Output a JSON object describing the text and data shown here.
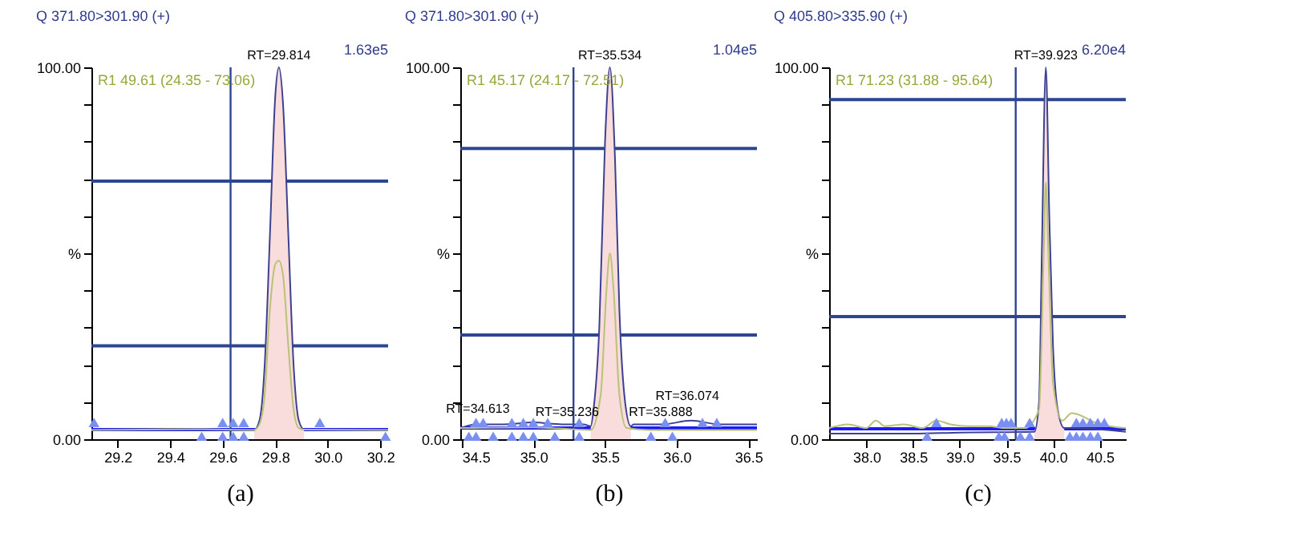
{
  "chart_data": [
    {
      "type": "line",
      "title": "Q 371.80>301.90 (+)",
      "xlabel": "(a)",
      "xlim": [
        29.1,
        30.23
      ],
      "xticks": [
        {
          "value": 29.2,
          "label": "29.2"
        },
        {
          "value": 29.4,
          "label": "29.4"
        },
        {
          "value": 29.6,
          "label": "29.6"
        },
        {
          "value": 29.8,
          "label": "29.8"
        },
        {
          "value": 30.0,
          "label": "30.0"
        },
        {
          "value": 30.2,
          "label": "30.2"
        }
      ],
      "ylim": [
        0,
        100
      ],
      "yticks": [
        {
          "value": 0,
          "label": "0.00"
        },
        {
          "value": 10,
          "label": null
        },
        {
          "value": 20,
          "label": null
        },
        {
          "value": 30,
          "label": null
        },
        {
          "value": 40,
          "label": null
        },
        {
          "value": 50,
          "label": "%"
        },
        {
          "value": 60,
          "label": null
        },
        {
          "value": 70,
          "label": null
        },
        {
          "value": 80,
          "label": null
        },
        {
          "value": 90,
          "label": null
        },
        {
          "value": 100,
          "label": "100.00"
        }
      ],
      "grid": false,
      "series": [
        {
          "type": "area",
          "color": "#f9dcdc",
          "x": [
            29.72,
            29.74,
            29.76,
            29.78,
            29.8,
            29.814,
            29.83,
            29.85,
            29.87,
            29.89,
            29.91
          ],
          "values": [
            2.5,
            5,
            20,
            55,
            92,
            100,
            90,
            55,
            20,
            5,
            2.6
          ]
        },
        {
          "color": "#3d4190",
          "x": [
            29.1,
            29.4,
            29.5,
            29.7,
            29.72,
            29.74,
            29.76,
            29.78,
            29.8,
            29.814,
            29.83,
            29.85,
            29.87,
            29.89,
            29.91,
            29.95,
            30.23
          ],
          "values": [
            2.5,
            2.8,
            2.6,
            2.5,
            2.5,
            5,
            20,
            55,
            92,
            100,
            90,
            55,
            20,
            5,
            2.6,
            2.6,
            2.5
          ]
        },
        {
          "color": "#b9c276",
          "x": [
            29.1,
            29.5,
            29.72,
            29.74,
            29.76,
            29.78,
            29.8,
            29.814,
            29.83,
            29.85,
            29.87,
            29.89,
            29.91,
            30.23
          ],
          "values": [
            2.5,
            2.7,
            2.5,
            4,
            12,
            35,
            47,
            48,
            44,
            25,
            8,
            3,
            2.6,
            2.5
          ]
        },
        {
          "type": "scatter",
          "marker": "triangle",
          "color": "#7b8ff0",
          "x": [
            29.11,
            29.6,
            29.64,
            29.68,
            29.97
          ],
          "values": [
            4.5,
            4.5,
            4.5,
            4.5,
            4.5
          ]
        },
        {
          "type": "scatter",
          "marker": "triangle",
          "color": "#7b8ff0",
          "x": [
            29.52,
            29.6,
            29.64,
            29.68,
            30.22
          ],
          "values": [
            0.8,
            0.8,
            0.8,
            0.8,
            0.8
          ]
        }
      ],
      "ref_lines": [
        {
          "axis": "y",
          "value": 69.4,
          "color": "#2e4591"
        },
        {
          "axis": "y",
          "value": 25.1,
          "color": "#2e4591"
        },
        {
          "axis": "y",
          "value": 2.6,
          "color": "#1a1aff"
        },
        {
          "axis": "x",
          "value": 29.63,
          "color": "#2e4591"
        }
      ],
      "annotations": [
        "1.63e5",
        "R1 49.61 (24.35 - 73.06)",
        {
          "text": "RT=29.814",
          "x": 29.814,
          "y": 100
        }
      ]
    },
    {
      "type": "line",
      "title": "Q 371.80>301.90 (+)",
      "xlabel": "(b)",
      "xlim": [
        34.49,
        36.56
      ],
      "xticks": [
        {
          "value": 34.5,
          "label": "34.5"
        },
        {
          "value": 35.0,
          "label": "35.0"
        },
        {
          "value": 35.5,
          "label": "35.5"
        },
        {
          "value": 36.0,
          "label": "36.0"
        },
        {
          "value": 36.5,
          "label": "36.5"
        }
      ],
      "ylim": [
        0,
        100
      ],
      "yticks": [
        {
          "value": 0,
          "label": "0.00"
        },
        {
          "value": 10,
          "label": null
        },
        {
          "value": 20,
          "label": null
        },
        {
          "value": 30,
          "label": null
        },
        {
          "value": 40,
          "label": null
        },
        {
          "value": 50,
          "label": "%"
        },
        {
          "value": 60,
          "label": null
        },
        {
          "value": 70,
          "label": null
        },
        {
          "value": 80,
          "label": null
        },
        {
          "value": 90,
          "label": null
        },
        {
          "value": 100,
          "label": "100.00"
        }
      ],
      "grid": false,
      "series": [
        {
          "type": "area",
          "color": "#f9dcdc",
          "x": [
            35.4,
            35.42,
            35.46,
            35.5,
            35.534,
            35.57,
            35.6,
            35.64,
            35.68
          ],
          "values": [
            3,
            8,
            30,
            80,
            100,
            75,
            35,
            10,
            3
          ]
        },
        {
          "color": "#3d4190",
          "x": [
            34.49,
            34.6,
            34.8,
            35.0,
            35.2,
            35.35,
            35.4,
            35.42,
            35.46,
            35.5,
            35.534,
            35.57,
            35.6,
            35.64,
            35.68,
            35.7,
            35.9,
            36.1,
            36.3,
            36.56
          ],
          "values": [
            3,
            4,
            4,
            4.5,
            4,
            4,
            3.5,
            8,
            30,
            80,
            100,
            75,
            35,
            10,
            3.5,
            4,
            4,
            5,
            4,
            4
          ]
        },
        {
          "color": "#b9c276",
          "x": [
            34.49,
            35.0,
            35.4,
            35.47,
            35.51,
            35.534,
            35.56,
            35.6,
            35.65,
            35.8,
            36.56
          ],
          "values": [
            3,
            3.2,
            2.5,
            12,
            40,
            50,
            40,
            12,
            3,
            2.5,
            2.5
          ]
        },
        {
          "type": "scatter",
          "marker": "triangle",
          "color": "#7b8ff0",
          "x": [
            34.6,
            34.65,
            34.85,
            34.93,
            35.0,
            35.1,
            35.32,
            35.92,
            36.18,
            36.28
          ],
          "values": [
            4.5,
            4.5,
            4.5,
            4.5,
            4.5,
            4.5,
            4.5,
            4.5,
            4.5,
            4.5
          ]
        },
        {
          "type": "scatter",
          "marker": "triangle",
          "color": "#7b8ff0",
          "x": [
            34.55,
            34.6,
            34.72,
            34.85,
            34.93,
            35.0,
            35.15,
            35.32,
            35.82,
            35.97
          ],
          "values": [
            0.8,
            0.8,
            0.8,
            0.8,
            0.8,
            0.8,
            0.8,
            0.8,
            0.8,
            0.8
          ]
        }
      ],
      "ref_lines": [
        {
          "axis": "y",
          "value": 78.2,
          "color": "#2e4591"
        },
        {
          "axis": "y",
          "value": 28,
          "color": "#2e4591"
        },
        {
          "axis": "y",
          "value": 3,
          "color": "#1a1aff"
        },
        {
          "axis": "x",
          "value": 35.28,
          "color": "#2e4591"
        }
      ],
      "annotations": [
        "1.04e5",
        "R1 45.17 (24.17 - 72.51)",
        {
          "text": "RT=35.534",
          "x": 35.534,
          "y": 100
        },
        {
          "text": "RT=34.613",
          "x": 34.613,
          "y": 5
        },
        {
          "text": "RT=35.236",
          "x": 35.236,
          "y": 4
        },
        {
          "text": "RT=35.888",
          "x": 35.888,
          "y": 4
        },
        {
          "text": "RT=36.074",
          "x": 36.074,
          "y": 4
        }
      ]
    },
    {
      "type": "line",
      "title": "Q 405.80>335.90 (+)",
      "xlabel": "(c)",
      "xlim": [
        37.6,
        40.78
      ],
      "xticks": [
        {
          "value": 38.0,
          "label": "38.0"
        },
        {
          "value": 38.5,
          "label": "38.5"
        },
        {
          "value": 39.0,
          "label": "39.0"
        },
        {
          "value": 39.5,
          "label": "39.5"
        },
        {
          "value": 40.0,
          "label": "40.0"
        },
        {
          "value": 40.5,
          "label": "40.5"
        }
      ],
      "ylim": [
        0,
        100
      ],
      "yticks": [
        {
          "value": 0,
          "label": "0.00"
        },
        {
          "value": 10,
          "label": null
        },
        {
          "value": 20,
          "label": null
        },
        {
          "value": 30,
          "label": null
        },
        {
          "value": 40,
          "label": null
        },
        {
          "value": 50,
          "label": "%"
        },
        {
          "value": 60,
          "label": null
        },
        {
          "value": 70,
          "label": null
        },
        {
          "value": 80,
          "label": null
        },
        {
          "value": 90,
          "label": null
        },
        {
          "value": 100,
          "label": "100.00"
        }
      ],
      "grid": false,
      "series": [
        {
          "type": "area",
          "color": "#f9dcdc",
          "x": [
            39.8,
            39.85,
            39.88,
            39.923,
            39.96,
            40.0,
            40.05,
            40.12
          ],
          "values": [
            2,
            10,
            50,
            100,
            60,
            25,
            8,
            3
          ]
        },
        {
          "color": "#3d4190",
          "x": [
            37.6,
            38.5,
            39.0,
            39.8,
            39.85,
            39.88,
            39.923,
            39.96,
            40.0,
            40.05,
            40.12,
            40.15,
            40.78
          ],
          "values": [
            1.5,
            1.5,
            1.8,
            2,
            10,
            50,
            100,
            60,
            25,
            8,
            3,
            3,
            2
          ]
        },
        {
          "color": "#b9c276",
          "x": [
            37.6,
            37.8,
            38.0,
            38.1,
            38.2,
            38.4,
            38.6,
            38.75,
            38.9,
            39.1,
            39.3,
            39.5,
            39.7,
            39.85,
            39.9,
            39.923,
            39.95,
            40.0,
            40.1,
            40.2,
            40.5,
            40.78
          ],
          "values": [
            3,
            4,
            3,
            5,
            3.5,
            4,
            3,
            5,
            4,
            3.5,
            3.5,
            3,
            3,
            8,
            50,
            69,
            50,
            15,
            5,
            7,
            4,
            3
          ]
        },
        {
          "type": "scatter",
          "marker": "triangle",
          "color": "#7b8ff0",
          "x": [
            38.75,
            39.45,
            39.5,
            39.55,
            39.75,
            40.25,
            40.32,
            40.4,
            40.48,
            40.55
          ],
          "values": [
            4.5,
            4.5,
            4.5,
            4.5,
            4.5,
            4.5,
            4.5,
            4.5,
            4.5,
            4.5
          ]
        },
        {
          "type": "scatter",
          "marker": "triangle",
          "color": "#7b8ff0",
          "x": [
            38.65,
            39.42,
            39.48,
            39.65,
            39.75,
            40.18,
            40.25,
            40.32,
            40.4,
            40.48
          ],
          "values": [
            0.8,
            0.8,
            0.8,
            0.8,
            0.8,
            0.8,
            0.8,
            0.8,
            0.8,
            0.8
          ]
        }
      ],
      "ref_lines": [
        {
          "axis": "y",
          "value": 91.3,
          "color": "#2e4591"
        },
        {
          "axis": "y",
          "value": 33,
          "color": "#2e4591"
        },
        {
          "axis": "y",
          "value": 2.8,
          "color": "#1a1aff"
        },
        {
          "axis": "x",
          "value": 39.6,
          "color": "#2e4591"
        }
      ],
      "annotations": [
        "6.20e4",
        "R1 71.23 (31.88 - 95.64)",
        {
          "text": "RT=39.923",
          "x": 39.923,
          "y": 100
        }
      ]
    }
  ]
}
